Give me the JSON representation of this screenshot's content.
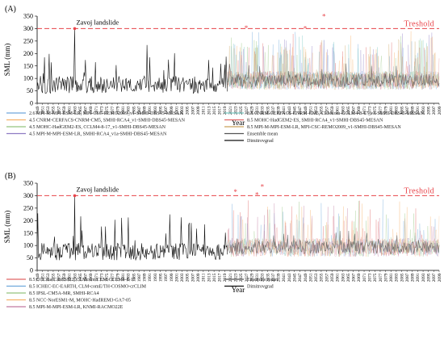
{
  "chart_data": [
    {
      "panel": "(A)",
      "type": "line",
      "xlabel": "Year",
      "ylabel": "SML (mm)",
      "x_range": [
        1949,
        2099
      ],
      "ylim": [
        0,
        350
      ],
      "yticks": [
        0,
        50,
        100,
        150,
        200,
        250,
        300,
        350
      ],
      "threshold": {
        "value": 300,
        "label": "Treshold",
        "color": "#e8444a"
      },
      "annotation": {
        "text": "Zavoj landslide",
        "year": 1963,
        "value": 300
      },
      "exceedances": [
        {
          "year": 2027,
          "value": 305
        },
        {
          "year": 2049,
          "value": 303
        },
        {
          "year": 2056,
          "value": 352
        }
      ],
      "historical_end": 2020,
      "series": [
        {
          "name": "2.6 MPI-M-MPI-ESM-LR, MPI-CSC-REMO2009_v1-SMHI-DBS45-MESAN",
          "color": "#6fa8dc"
        },
        {
          "name": "4.5 CNRM-CERFACS-CNRM-CM5, SMHI-RCA4_v1-SMHI-DBS45-MESAN",
          "color": "#f6b26b"
        },
        {
          "name": "4.5 MOHC-HadGEM2-ES, CCLM4-8-17_v1-SMHI-DBS45-MESAN",
          "color": "#93c47d"
        },
        {
          "name": "4.5 MPI-M-MPI-ESM-LR, SMHI-RCA4_v1a-SMHI-DBS45-MESAN",
          "color": "#8e7cc3"
        },
        {
          "name": "8.5 CNRM-CERFACS-CNRM-CM5, CLMcom-CCLM4-8-17_v1-SMHI-DBS45-MESAN",
          "color": "#76c7c0"
        },
        {
          "name": "8.5 MOHC-HadGEM2-ES, SMHI-RCA4_v1-SMHI-DBS45-MESAN",
          "color": "#e06666"
        },
        {
          "name": "8.5 MPI-M-MPI-ESM-LR, MPI-CSC-REMO2009_v1-SMHI-DBS45-MESAN",
          "color": "#c9a15b"
        },
        {
          "name": "Ensemble mean",
          "color": "#555555"
        },
        {
          "name": "Dimitrovgrad",
          "color": "#111111"
        }
      ]
    },
    {
      "panel": "(B)",
      "type": "line",
      "xlabel": "Year",
      "ylabel": "SML (mm)",
      "x_range": [
        1949,
        2099
      ],
      "ylim": [
        0,
        350
      ],
      "yticks": [
        0,
        50,
        100,
        150,
        200,
        250,
        300,
        350
      ],
      "threshold": {
        "value": 300,
        "label": "Treshold",
        "color": "#e8444a"
      },
      "annotation": {
        "text": "Zavoj landslide",
        "year": 1963,
        "value": 300
      },
      "exceedances": [
        {
          "year": 2023,
          "value": 318
        },
        {
          "year": 2031,
          "value": 307
        },
        {
          "year": 2033,
          "value": 338
        }
      ],
      "historical_end": 2020,
      "series": [
        {
          "name": "8.5 CCCma-CanESM2, CLMcom-CLM-CCLM4-8-17",
          "color": "#e06666"
        },
        {
          "name": "8.5 ICHEC-EC-EARTH, CLM-comE/TH-COSMO-crCLIM",
          "color": "#6fa8dc"
        },
        {
          "name": "8.5 IPSL-CM5A-MR, SMHI-RCA4",
          "color": "#93c47d"
        },
        {
          "name": "8.5 NCC-NorESM1-M, MOHC-HadREM3-GA7-05",
          "color": "#f6b26b"
        },
        {
          "name": "8.5 MPI-M-MPI-ESM-LR, KNMI-RACMO22E",
          "color": "#c27ba0"
        },
        {
          "name": "Ensemble mean",
          "color": "#555555"
        },
        {
          "name": "Dimitrovgrad",
          "color": "#111111"
        }
      ]
    }
  ]
}
